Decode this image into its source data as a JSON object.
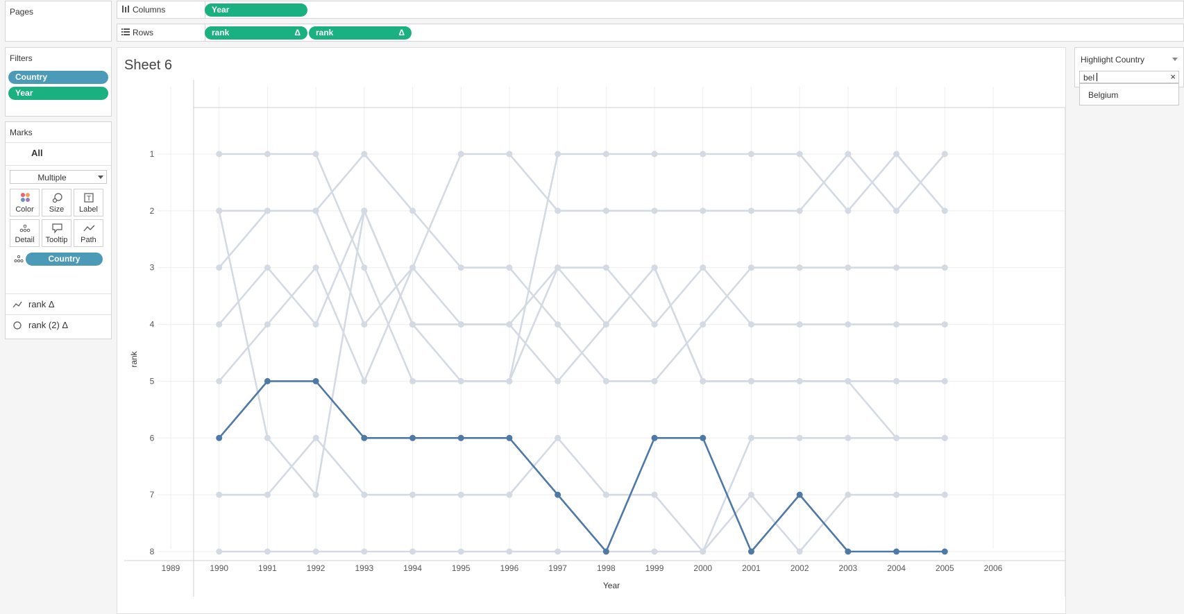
{
  "pages_title": "Pages",
  "columns": {
    "label": "Columns",
    "pills": [
      "Year"
    ]
  },
  "rows": {
    "label": "Rows",
    "pills": [
      "rank",
      "rank"
    ],
    "delta": "Δ"
  },
  "filters": {
    "title": "Filters",
    "pills": [
      "Country",
      "Year"
    ]
  },
  "marks": {
    "title": "Marks",
    "all_label": "All",
    "type": "Multiple",
    "buttons": [
      "Color",
      "Size",
      "Label",
      "Detail",
      "Tooltip",
      "Path"
    ],
    "detail_pill": "Country",
    "measures": [
      {
        "label": "rank Δ"
      },
      {
        "label": "rank (2) Δ"
      }
    ]
  },
  "sheet_title": "Sheet 6",
  "highlight": {
    "title": "Highlight Country",
    "query": "bel",
    "suggestion": "Belgium"
  },
  "chart_data": {
    "type": "line",
    "xlabel": "Year",
    "ylabel": "rank",
    "x": [
      1990,
      1991,
      1992,
      1993,
      1994,
      1995,
      1996,
      1997,
      1998,
      1999,
      2000,
      2001,
      2002,
      2003,
      2004,
      2005
    ],
    "x_ticks": [
      1989,
      1990,
      1991,
      1992,
      1993,
      1994,
      1995,
      1996,
      1997,
      1998,
      1999,
      2000,
      2001,
      2002,
      2003,
      2004,
      2005,
      2006
    ],
    "y_ticks": [
      1,
      2,
      3,
      4,
      5,
      6,
      7,
      8
    ],
    "xlim": [
      1989,
      2006
    ],
    "ylim": [
      8,
      1
    ],
    "y_reversed": true,
    "grid": true,
    "highlight_color": "#4e79a7",
    "muted_color": "#d3dae3",
    "series": [
      {
        "name": "Belgium",
        "highlighted": true,
        "values": [
          6,
          5,
          5,
          6,
          6,
          6,
          6,
          7,
          8,
          6,
          6,
          8,
          7,
          8,
          8,
          8
        ]
      },
      {
        "highlighted": false,
        "values": [
          1,
          1,
          1,
          3,
          5,
          5,
          5,
          1,
          1,
          1,
          1,
          1,
          1,
          2,
          1,
          2
        ]
      },
      {
        "highlighted": false,
        "values": [
          2,
          6,
          7,
          2,
          4,
          5,
          5,
          3,
          3,
          4,
          3,
          4,
          4,
          4,
          4,
          4
        ]
      },
      {
        "highlighted": false,
        "values": [
          3,
          2,
          2,
          1,
          2,
          3,
          3,
          4,
          5,
          5,
          4,
          3,
          3,
          3,
          3,
          3
        ]
      },
      {
        "highlighted": false,
        "values": [
          4,
          3,
          4,
          2,
          4,
          4,
          4,
          5,
          4,
          3,
          5,
          5,
          5,
          5,
          6,
          6
        ]
      },
      {
        "highlighted": false,
        "values": [
          5,
          4,
          3,
          5,
          3,
          4,
          4,
          3,
          4,
          3,
          5,
          5,
          5,
          5,
          5,
          5
        ]
      },
      {
        "highlighted": false,
        "values": [
          7,
          7,
          6,
          7,
          7,
          7,
          7,
          6,
          7,
          7,
          8,
          6,
          6,
          6,
          6,
          6
        ]
      },
      {
        "highlighted": false,
        "values": [
          8,
          8,
          8,
          8,
          8,
          8,
          8,
          8,
          8,
          8,
          8,
          7,
          8,
          7,
          7,
          7
        ]
      },
      {
        "highlighted": false,
        "values": [
          2,
          2,
          2,
          4,
          3,
          1,
          1,
          2,
          2,
          2,
          2,
          2,
          2,
          1,
          2,
          1
        ]
      }
    ]
  }
}
